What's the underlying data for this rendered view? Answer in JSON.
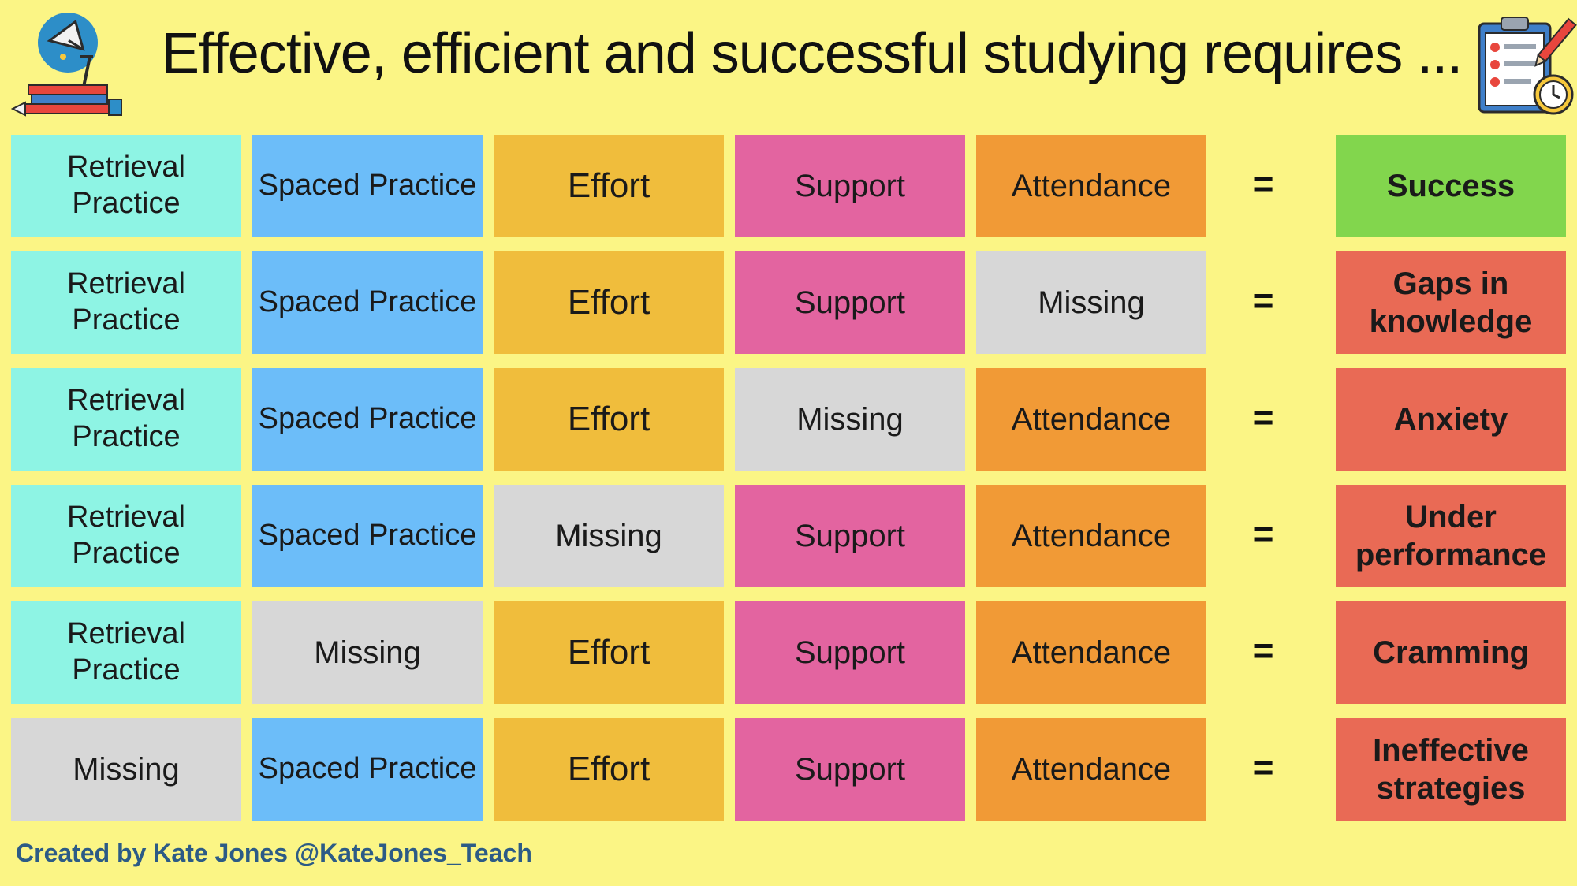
{
  "title": "Effective, efficient and successful studying requires ...",
  "footer": "Created by Kate Jones @KateJones_Teach",
  "icons": {
    "left": "study-lamp-books-icon",
    "right": "clipboard-checklist-clock-icon"
  },
  "colors": {
    "background": "#fbf585",
    "retrieval_practice": "#8ef4e4",
    "spaced_practice": "#6cbdf9",
    "effort": "#f0bd3c",
    "support": "#e364a0",
    "attendance": "#f19a36",
    "missing": "#d7d7d7",
    "success": "#82d64d",
    "negative_outcome": "#e96a55",
    "footer_text": "#2c5b86"
  },
  "equals_sign": "=",
  "rows": [
    {
      "cells": [
        "Retrieval Practice",
        "Spaced Practice",
        "Effort",
        "Support",
        "Attendance"
      ],
      "outcome": "Success"
    },
    {
      "cells": [
        "Retrieval Practice",
        "Spaced Practice",
        "Effort",
        "Support",
        "Missing"
      ],
      "outcome": "Gaps in knowledge"
    },
    {
      "cells": [
        "Retrieval Practice",
        "Spaced Practice",
        "Effort",
        "Missing",
        "Attendance"
      ],
      "outcome": "Anxiety"
    },
    {
      "cells": [
        "Retrieval Practice",
        "Spaced Practice",
        "Missing",
        "Support",
        "Attendance"
      ],
      "outcome": "Under performance"
    },
    {
      "cells": [
        "Retrieval Practice",
        "Missing",
        "Effort",
        "Support",
        "Attendance"
      ],
      "outcome": "Cramming"
    },
    {
      "cells": [
        "Missing",
        "Spaced Practice",
        "Effort",
        "Support",
        "Attendance"
      ],
      "outcome": "Ineffective strategies"
    }
  ]
}
